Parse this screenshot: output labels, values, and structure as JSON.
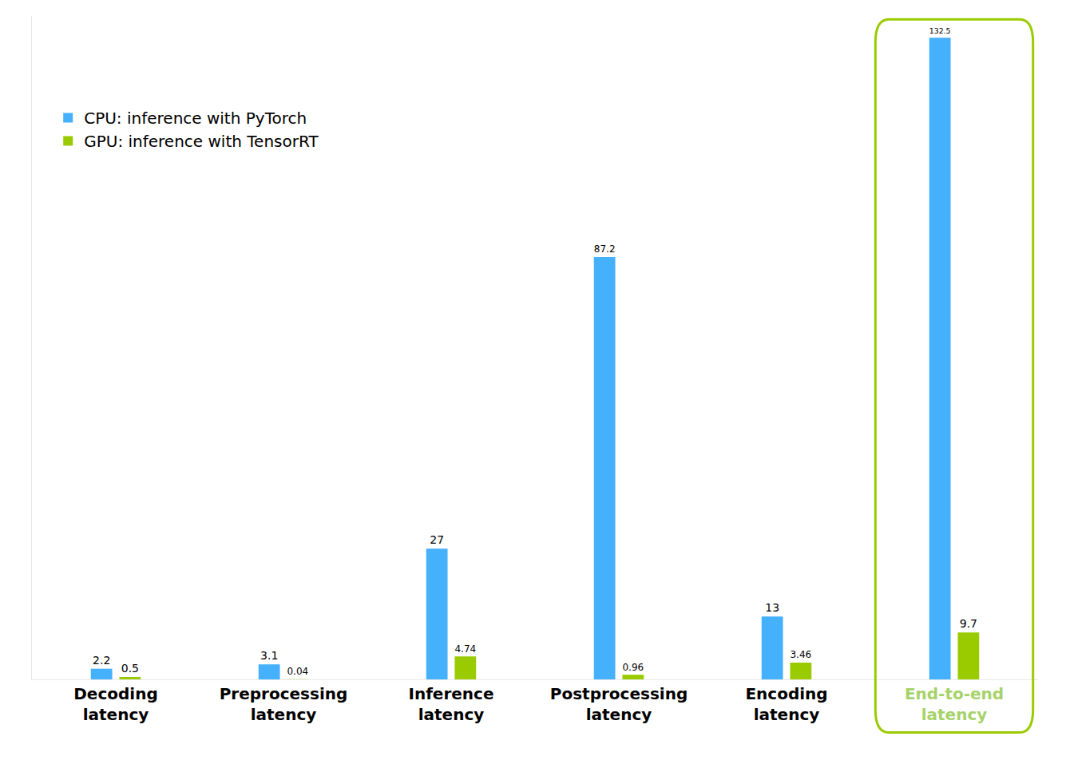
{
  "chart_data": {
    "type": "bar",
    "categories": [
      "Decoding latency",
      "Preprocessing latency",
      "Inference latency",
      "Postprocessing latency",
      "Encoding latency",
      "End-to-end latency"
    ],
    "series": [
      {
        "name": "CPU: inference with PyTorch",
        "color": "#45b0fc",
        "values": [
          2.2,
          3.1,
          27,
          87.2,
          13,
          132.5
        ]
      },
      {
        "name": "GPU: inference with TensorRT",
        "color": "#9acb00",
        "values": [
          0.5,
          0.04,
          4.74,
          0.96,
          3.46,
          9.7
        ]
      }
    ],
    "ylim": [
      0,
      137
    ],
    "yticks": [],
    "grid": false,
    "legend": "upper left",
    "data_labels": true,
    "tick_labels": "x"
  }
}
